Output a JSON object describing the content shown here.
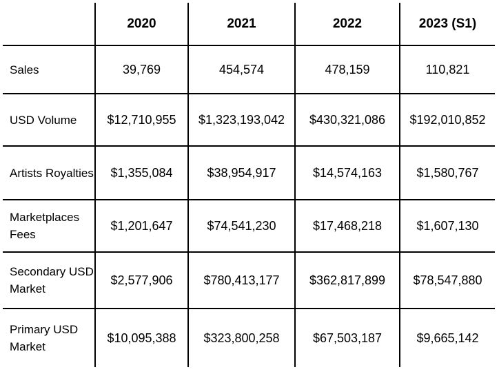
{
  "table": {
    "header": [
      "",
      "2020",
      "2021",
      "2022",
      "2023 (S1)"
    ],
    "rows": [
      {
        "label": "Sales",
        "values": [
          "39,769",
          "454,574",
          "478,159",
          "110,821"
        ]
      },
      {
        "label": "USD Volume",
        "values": [
          "$12,710,955",
          "$1,323,193,042",
          "$430,321,086",
          "$192,010,852"
        ]
      },
      {
        "label": "Artists Royalties",
        "values": [
          "$1,355,084",
          "$38,954,917",
          "$14,574,163",
          "$1,580,767"
        ]
      },
      {
        "label": "Marketplaces Fees",
        "values": [
          "$1,201,647",
          "$74,541,230",
          "$17,468,218",
          "$1,607,130"
        ]
      },
      {
        "label": "Secondary USD Market",
        "values": [
          "$2,577,906",
          "$780,413,177",
          "$362,817,899",
          "$78,547,880"
        ]
      },
      {
        "label": "Primary USD Market",
        "values": [
          "$10,095,388",
          "$323,800,258",
          "$67,503,187",
          "$9,665,142"
        ]
      }
    ]
  }
}
